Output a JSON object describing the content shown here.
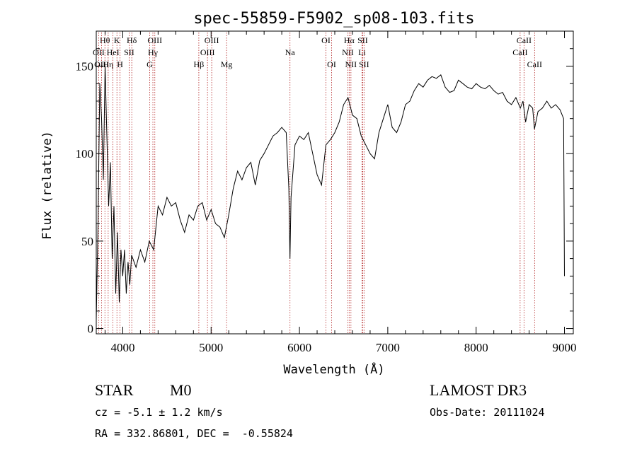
{
  "header": {
    "title": "spec-55859-F5902_sp08-103.fits"
  },
  "info": {
    "object_class": "STAR",
    "subclass": "M0",
    "survey": "LAMOST DR3",
    "cz": "cz = -5.1 ± 1.2 km/s",
    "obs_date": "Obs-Date: 20111024",
    "coords": "RA = 332.86801, DEC =  -0.55824"
  },
  "chart_data": {
    "type": "line",
    "title": "spec-55859-F5902_sp08-103.fits",
    "xlabel": "Wavelength (Å)",
    "ylabel": "Flux (relative)",
    "xlim": [
      3700,
      9100
    ],
    "ylim": [
      -3,
      170
    ],
    "x_ticks": [
      4000,
      5000,
      6000,
      7000,
      8000,
      9000
    ],
    "y_ticks": [
      0,
      50,
      100,
      150
    ],
    "grid": false,
    "colors": {
      "spectrum": "#000000",
      "line_markers": "#b22222"
    },
    "series": [
      {
        "x": [
          3700,
          3720,
          3740,
          3760,
          3780,
          3800,
          3820,
          3840,
          3860,
          3880,
          3900,
          3920,
          3940,
          3960,
          3980,
          4000,
          4020,
          4040,
          4060,
          4080,
          4100,
          4150,
          4200,
          4250,
          4300,
          4350,
          4400,
          4450,
          4500,
          4550,
          4600,
          4650,
          4700,
          4750,
          4800,
          4850,
          4900,
          4950,
          5000,
          5050,
          5100,
          5150,
          5200,
          5250,
          5300,
          5350,
          5400,
          5450,
          5500,
          5550,
          5600,
          5650,
          5700,
          5750,
          5800,
          5850,
          5880,
          5893,
          5905,
          5950,
          6000,
          6050,
          6100,
          6150,
          6200,
          6250,
          6300,
          6350,
          6400,
          6450,
          6500,
          6550,
          6600,
          6650,
          6700,
          6750,
          6800,
          6850,
          6900,
          6950,
          7000,
          7050,
          7100,
          7150,
          7200,
          7250,
          7300,
          7350,
          7400,
          7450,
          7500,
          7550,
          7600,
          7650,
          7700,
          7750,
          7800,
          7850,
          7900,
          7950,
          8000,
          8050,
          8100,
          8150,
          8200,
          8250,
          8300,
          8350,
          8400,
          8450,
          8500,
          8530,
          8560,
          8600,
          8640,
          8660,
          8700,
          8750,
          8800,
          8850,
          8900,
          8950,
          8990,
          9000
        ],
        "y": [
          5,
          60,
          140,
          120,
          85,
          150,
          110,
          70,
          95,
          40,
          70,
          20,
          55,
          15,
          45,
          30,
          45,
          20,
          38,
          25,
          42,
          35,
          45,
          38,
          50,
          45,
          70,
          65,
          75,
          70,
          72,
          62,
          55,
          65,
          62,
          70,
          72,
          62,
          68,
          60,
          58,
          52,
          65,
          80,
          90,
          85,
          92,
          95,
          82,
          96,
          100,
          105,
          110,
          112,
          115,
          112,
          80,
          40,
          75,
          105,
          110,
          108,
          112,
          100,
          88,
          82,
          105,
          108,
          112,
          118,
          128,
          132,
          122,
          120,
          110,
          105,
          100,
          97,
          112,
          120,
          128,
          115,
          112,
          118,
          128,
          130,
          136,
          140,
          138,
          142,
          144,
          143,
          145,
          138,
          135,
          136,
          142,
          140,
          138,
          137,
          140,
          138,
          137,
          139,
          136,
          134,
          135,
          130,
          128,
          132,
          126,
          130,
          118,
          128,
          126,
          114,
          124,
          126,
          130,
          126,
          128,
          125,
          120,
          30
        ]
      }
    ],
    "line_markers": [
      {
        "name": "Hθ",
        "x": 3798,
        "row": 1
      },
      {
        "name": "OII",
        "x": 3727,
        "row": 2
      },
      {
        "name": "OIII",
        "x": 3760,
        "row": 3
      },
      {
        "name": "Hη",
        "x": 3835,
        "row": 3
      },
      {
        "name": "HeI",
        "x": 3889,
        "row": 2
      },
      {
        "name": "K",
        "x": 3934,
        "row": 1
      },
      {
        "name": "H",
        "x": 3969,
        "row": 3
      },
      {
        "name": "SII",
        "x": 4072,
        "row": 2
      },
      {
        "name": "Hδ",
        "x": 4102,
        "row": 1
      },
      {
        "name": "G",
        "x": 4305,
        "row": 3
      },
      {
        "name": "Hγ",
        "x": 4341,
        "row": 2
      },
      {
        "name": "OIII",
        "x": 4363,
        "row": 1
      },
      {
        "name": "Hβ",
        "x": 4861,
        "row": 3
      },
      {
        "name": "OIII",
        "x": 4959,
        "row": 2
      },
      {
        "name": "OIII",
        "x": 5007,
        "row": 1
      },
      {
        "name": "Mg",
        "x": 5175,
        "row": 3
      },
      {
        "name": "Na",
        "x": 5893,
        "row": 2
      },
      {
        "name": "OI",
        "x": 6300,
        "row": 1
      },
      {
        "name": "OI",
        "x": 6364,
        "row": 3
      },
      {
        "name": "NII",
        "x": 6548,
        "row": 2
      },
      {
        "name": "Hα",
        "x": 6563,
        "row": 1
      },
      {
        "name": "NII",
        "x": 6583,
        "row": 3
      },
      {
        "name": "Li",
        "x": 6708,
        "row": 2
      },
      {
        "name": "SII",
        "x": 6716,
        "row": 1
      },
      {
        "name": "SII",
        "x": 6731,
        "row": 3
      },
      {
        "name": "CaII",
        "x": 8498,
        "row": 2
      },
      {
        "name": "CaII",
        "x": 8542,
        "row": 1
      },
      {
        "name": "CaII",
        "x": 8662,
        "row": 3
      }
    ]
  }
}
